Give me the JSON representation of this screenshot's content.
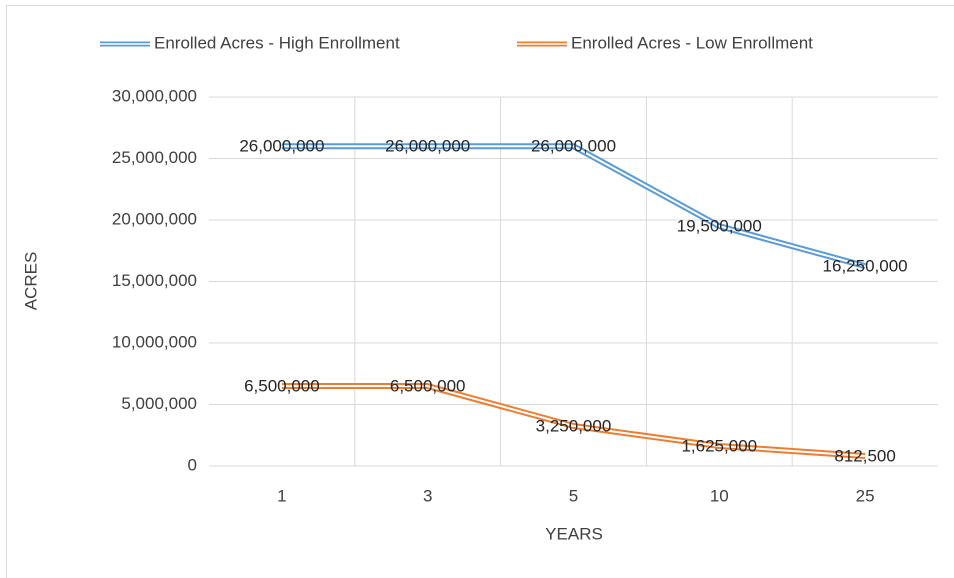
{
  "chart_data": {
    "type": "line",
    "categories": [
      "1",
      "3",
      "5",
      "10",
      "25"
    ],
    "series": [
      {
        "name": "Enrolled Acres - High Enrollment",
        "color": "#5b9bd5",
        "values": [
          26000000,
          26000000,
          26000000,
          19500000,
          16250000
        ],
        "value_labels": [
          "26,000,000",
          "26,000,000",
          "26,000,000",
          "19,500,000",
          "16,250,000"
        ]
      },
      {
        "name": "Enrolled Acres - Low Enrollment",
        "color": "#ed7d31",
        "values": [
          6500000,
          6500000,
          3250000,
          1625000,
          812500
        ],
        "value_labels": [
          "6,500,000",
          "6,500,000",
          "3,250,000",
          "1,625,000",
          "812,500"
        ]
      }
    ],
    "xlabel": "YEARS",
    "ylabel": "ACRES",
    "ylim": [
      0,
      30000000
    ],
    "yticks": [
      0,
      {
        "value": 5000000,
        "label": "5,000,000"
      },
      {
        "value": 10000000,
        "label": "10,000,000"
      },
      {
        "value": 15000000,
        "label": "15,000,000"
      },
      {
        "value": 20000000,
        "label": "20,000,000"
      },
      {
        "value": 25000000,
        "label": "25,000,000"
      },
      {
        "value": 30000000,
        "label": "30,000,000"
      }
    ],
    "grid": true,
    "legend": "top"
  }
}
